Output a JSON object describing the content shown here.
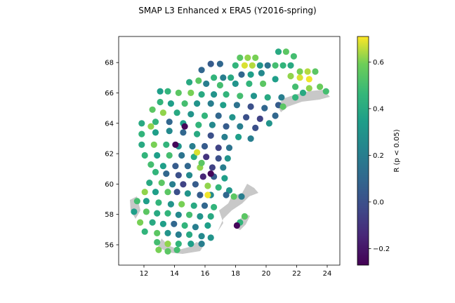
{
  "chart_data": {
    "type": "heatmap",
    "title": "SMAP L3 Enhanced x ERA5 (Y2016-spring)",
    "xlabel": "",
    "ylabel": "",
    "xlim": [
      10.4,
      24.8
    ],
    "ylim": [
      54.6,
      69.6
    ],
    "xticks": [
      "12",
      "14",
      "16",
      "18",
      "20",
      "22",
      "24"
    ],
    "yticks": [
      "56",
      "58",
      "60",
      "62",
      "64",
      "66",
      "68"
    ],
    "colorbar": {
      "label": "R (p < 0.05)",
      "range": [
        -0.27,
        0.71
      ],
      "ticks": [
        "−0.2",
        "0.0",
        "0.2",
        "0.4",
        "0.6"
      ],
      "colormap": "viridis"
    },
    "landmask_color": "#c8c8c8",
    "grid": false,
    "points": [
      [
        18.3,
        68.2,
        0.55
      ],
      [
        18.8,
        68.2,
        0.62
      ],
      [
        19.3,
        68.2,
        0.6
      ],
      [
        20.8,
        68.6,
        0.4
      ],
      [
        21.3,
        68.6,
        0.55
      ],
      [
        21.8,
        68.3,
        0.5
      ],
      [
        18.0,
        67.7,
        0.45
      ],
      [
        18.6,
        67.7,
        0.68
      ],
      [
        19.1,
        67.7,
        0.65
      ],
      [
        19.6,
        67.7,
        0.3
      ],
      [
        20.1,
        67.7,
        0.15
      ],
      [
        20.6,
        67.7,
        0.5
      ],
      [
        21.1,
        67.7,
        0.45
      ],
      [
        21.6,
        67.7,
        0.4
      ],
      [
        17.0,
        67.8,
        0.1
      ],
      [
        16.4,
        67.8,
        0.05
      ],
      [
        15.8,
        67.4,
        0.1
      ],
      [
        22.2,
        67.3,
        0.6
      ],
      [
        22.7,
        67.3,
        0.65
      ],
      [
        23.2,
        67.3,
        0.55
      ],
      [
        21.6,
        67.0,
        0.62
      ],
      [
        22.2,
        66.9,
        0.68
      ],
      [
        22.8,
        66.8,
        0.7
      ],
      [
        16.6,
        66.9,
        0.45
      ],
      [
        17.2,
        66.9,
        0.2
      ],
      [
        17.7,
        66.9,
        0.4
      ],
      [
        18.4,
        67.1,
        0.1
      ],
      [
        19.0,
        67.1,
        0.35
      ],
      [
        19.7,
        67.2,
        0.25
      ],
      [
        15.0,
        66.6,
        0.4
      ],
      [
        15.6,
        66.7,
        0.55
      ],
      [
        16.1,
        66.5,
        0.2
      ],
      [
        17.0,
        66.4,
        0.5
      ],
      [
        18.0,
        66.5,
        0.3
      ],
      [
        18.9,
        66.5,
        0.45
      ],
      [
        19.8,
        66.5,
        0.55
      ],
      [
        20.6,
        66.8,
        0.35
      ],
      [
        23.5,
        66.3,
        0.58
      ],
      [
        22.8,
        66.2,
        0.62
      ],
      [
        21.9,
        66.3,
        0.5
      ],
      [
        23.9,
        66.0,
        0.5
      ],
      [
        13.1,
        66.0,
        0.35
      ],
      [
        13.6,
        66.0,
        0.45
      ],
      [
        14.3,
        65.9,
        0.55
      ],
      [
        15.1,
        65.9,
        0.6
      ],
      [
        15.8,
        65.8,
        0.4
      ],
      [
        16.6,
        65.8,
        0.3
      ],
      [
        17.4,
        65.8,
        0.45
      ],
      [
        18.3,
        65.7,
        0.5
      ],
      [
        19.2,
        65.7,
        0.3
      ],
      [
        20.1,
        65.6,
        0.4
      ],
      [
        21.0,
        65.6,
        0.2
      ],
      [
        21.9,
        65.6,
        0.45
      ],
      [
        13.1,
        65.3,
        0.45
      ],
      [
        13.8,
        65.2,
        0.35
      ],
      [
        14.7,
        65.2,
        0.5
      ],
      [
        15.5,
        65.2,
        0.3
      ],
      [
        16.4,
        65.2,
        0.2
      ],
      [
        17.2,
        65.1,
        0.35
      ],
      [
        18.1,
        65.1,
        0.15
      ],
      [
        19.0,
        65.0,
        0.0
      ],
      [
        19.9,
        64.9,
        0.1
      ],
      [
        20.8,
        65.1,
        0.05
      ],
      [
        12.6,
        64.8,
        0.55
      ],
      [
        13.3,
        64.6,
        0.62
      ],
      [
        14.2,
        64.6,
        0.4
      ],
      [
        15.1,
        64.5,
        0.3
      ],
      [
        16.0,
        64.4,
        0.45
      ],
      [
        16.9,
        64.4,
        0.1
      ],
      [
        17.8,
        64.3,
        0.3
      ],
      [
        18.7,
        64.3,
        0.0
      ],
      [
        19.6,
        64.2,
        -0.05
      ],
      [
        20.6,
        64.4,
        0.1
      ],
      [
        11.9,
        63.9,
        0.4
      ],
      [
        12.8,
        64.0,
        0.45
      ],
      [
        13.7,
        64.0,
        0.1
      ],
      [
        14.6,
        63.9,
        0.35
      ],
      [
        15.6,
        63.8,
        0.45
      ],
      [
        16.5,
        63.8,
        0.25
      ],
      [
        17.4,
        63.7,
        0.05
      ],
      [
        18.3,
        63.7,
        0.2
      ],
      [
        19.3,
        63.6,
        0.0
      ],
      [
        20.2,
        63.9,
        0.3
      ],
      [
        11.9,
        63.2,
        0.45
      ],
      [
        12.8,
        63.3,
        0.35
      ],
      [
        13.7,
        63.4,
        0.25
      ],
      [
        14.6,
        63.3,
        0.1
      ],
      [
        15.5,
        63.2,
        0.4
      ],
      [
        16.4,
        63.1,
        0.0
      ],
      [
        17.3,
        63.0,
        0.2
      ],
      [
        18.2,
        63.0,
        0.35
      ],
      [
        14.7,
        63.7,
        -0.25
      ],
      [
        11.9,
        62.5,
        0.4
      ],
      [
        12.7,
        62.5,
        0.6
      ],
      [
        13.5,
        62.5,
        0.45
      ],
      [
        14.3,
        62.4,
        0.3
      ],
      [
        15.2,
        62.4,
        0.2
      ],
      [
        16.0,
        62.4,
        0.05
      ],
      [
        16.9,
        62.3,
        -0.05
      ],
      [
        17.6,
        62.3,
        0.15
      ],
      [
        12.1,
        61.8,
        0.45
      ],
      [
        12.9,
        61.8,
        0.35
      ],
      [
        13.7,
        61.8,
        0.5
      ],
      [
        14.5,
        61.8,
        0.15
      ],
      [
        15.3,
        61.7,
        0.4
      ],
      [
        16.1,
        61.7,
        -0.1
      ],
      [
        16.9,
        61.6,
        0.0
      ],
      [
        17.5,
        61.6,
        0.3
      ],
      [
        12.5,
        61.2,
        0.5
      ],
      [
        13.3,
        61.1,
        0.35
      ],
      [
        14.1,
        61.1,
        0.05
      ],
      [
        14.9,
        61.1,
        0.1
      ],
      [
        15.7,
        61.0,
        0.62
      ],
      [
        16.5,
        61.0,
        -0.05
      ],
      [
        17.2,
        61.0,
        0.2
      ],
      [
        15.5,
        62.0,
        0.68
      ],
      [
        15.8,
        61.3,
        0.55
      ],
      [
        12.8,
        60.7,
        0.45
      ],
      [
        13.5,
        60.6,
        0.1
      ],
      [
        14.3,
        60.5,
        0.0
      ],
      [
        15.0,
        60.5,
        0.25
      ],
      [
        15.9,
        60.4,
        -0.15
      ],
      [
        16.6,
        60.4,
        0.05
      ],
      [
        17.3,
        60.3,
        0.35
      ],
      [
        16.4,
        60.6,
        -0.25
      ],
      [
        12.4,
        60.0,
        0.4
      ],
      [
        13.2,
        60.0,
        0.55
      ],
      [
        13.9,
        59.9,
        0.2
      ],
      [
        14.6,
        59.9,
        -0.05
      ],
      [
        15.4,
        59.9,
        0.05
      ],
      [
        16.2,
        59.8,
        0.62
      ],
      [
        16.9,
        59.7,
        0.45
      ],
      [
        17.6,
        59.5,
        0.3
      ],
      [
        12.1,
        59.4,
        0.62
      ],
      [
        12.8,
        59.4,
        0.35
      ],
      [
        13.6,
        59.4,
        0.55
      ],
      [
        14.2,
        59.4,
        0.0
      ],
      [
        14.9,
        59.3,
        0.3
      ],
      [
        15.7,
        59.2,
        0.05
      ],
      [
        16.4,
        59.2,
        0.25
      ],
      [
        17.4,
        59.2,
        0.1
      ],
      [
        17.9,
        59.1,
        0.55
      ],
      [
        18.4,
        59.1,
        0.2
      ],
      [
        11.6,
        58.8,
        0.5
      ],
      [
        12.2,
        58.8,
        0.35
      ],
      [
        13.0,
        58.7,
        0.45
      ],
      [
        13.8,
        58.6,
        0.3
      ],
      [
        14.5,
        58.6,
        0.6
      ],
      [
        15.3,
        58.5,
        0.4
      ],
      [
        16.0,
        58.5,
        0.1
      ],
      [
        16.6,
        58.4,
        0.45
      ],
      [
        11.4,
        58.1,
        0.35
      ],
      [
        12.2,
        58.1,
        0.55
      ],
      [
        12.9,
        58.0,
        0.4
      ],
      [
        13.6,
        58.0,
        0.45
      ],
      [
        14.3,
        57.9,
        0.25
      ],
      [
        15.0,
        57.9,
        0.5
      ],
      [
        15.7,
        57.8,
        0.3
      ],
      [
        16.4,
        57.8,
        0.4
      ],
      [
        11.8,
        57.4,
        0.6
      ],
      [
        12.6,
        57.4,
        0.4
      ],
      [
        13.3,
        57.3,
        0.35
      ],
      [
        14.0,
        57.3,
        0.1
      ],
      [
        14.7,
        57.2,
        0.45
      ],
      [
        15.4,
        57.1,
        0.2
      ],
      [
        16.2,
        57.2,
        0.35
      ],
      [
        12.1,
        56.8,
        0.45
      ],
      [
        12.9,
        56.7,
        0.55
      ],
      [
        13.6,
        56.7,
        0.3
      ],
      [
        14.3,
        56.6,
        0.2
      ],
      [
        15.0,
        56.6,
        0.4
      ],
      [
        15.8,
        56.5,
        0.25
      ],
      [
        16.4,
        56.4,
        0.3
      ],
      [
        12.9,
        56.1,
        0.5
      ],
      [
        13.6,
        56.0,
        0.62
      ],
      [
        14.3,
        56.0,
        0.45
      ],
      [
        15.1,
        56.0,
        0.35
      ],
      [
        15.8,
        56.0,
        0.2
      ],
      [
        13.0,
        55.6,
        0.6
      ],
      [
        13.6,
        55.5,
        0.55
      ],
      [
        14.2,
        55.6,
        0.5
      ],
      [
        18.6,
        57.8,
        0.55
      ],
      [
        18.3,
        57.4,
        0.45
      ],
      [
        18.1,
        57.2,
        -0.25
      ],
      [
        14.1,
        62.5,
        -0.25
      ],
      [
        16.2,
        59.2,
        0.7
      ],
      [
        12.5,
        63.7,
        0.62
      ],
      [
        19.0,
        62.9,
        0.2
      ],
      [
        21.1,
        65.0,
        0.55
      ],
      [
        22.4,
        65.9,
        0.4
      ]
    ]
  }
}
